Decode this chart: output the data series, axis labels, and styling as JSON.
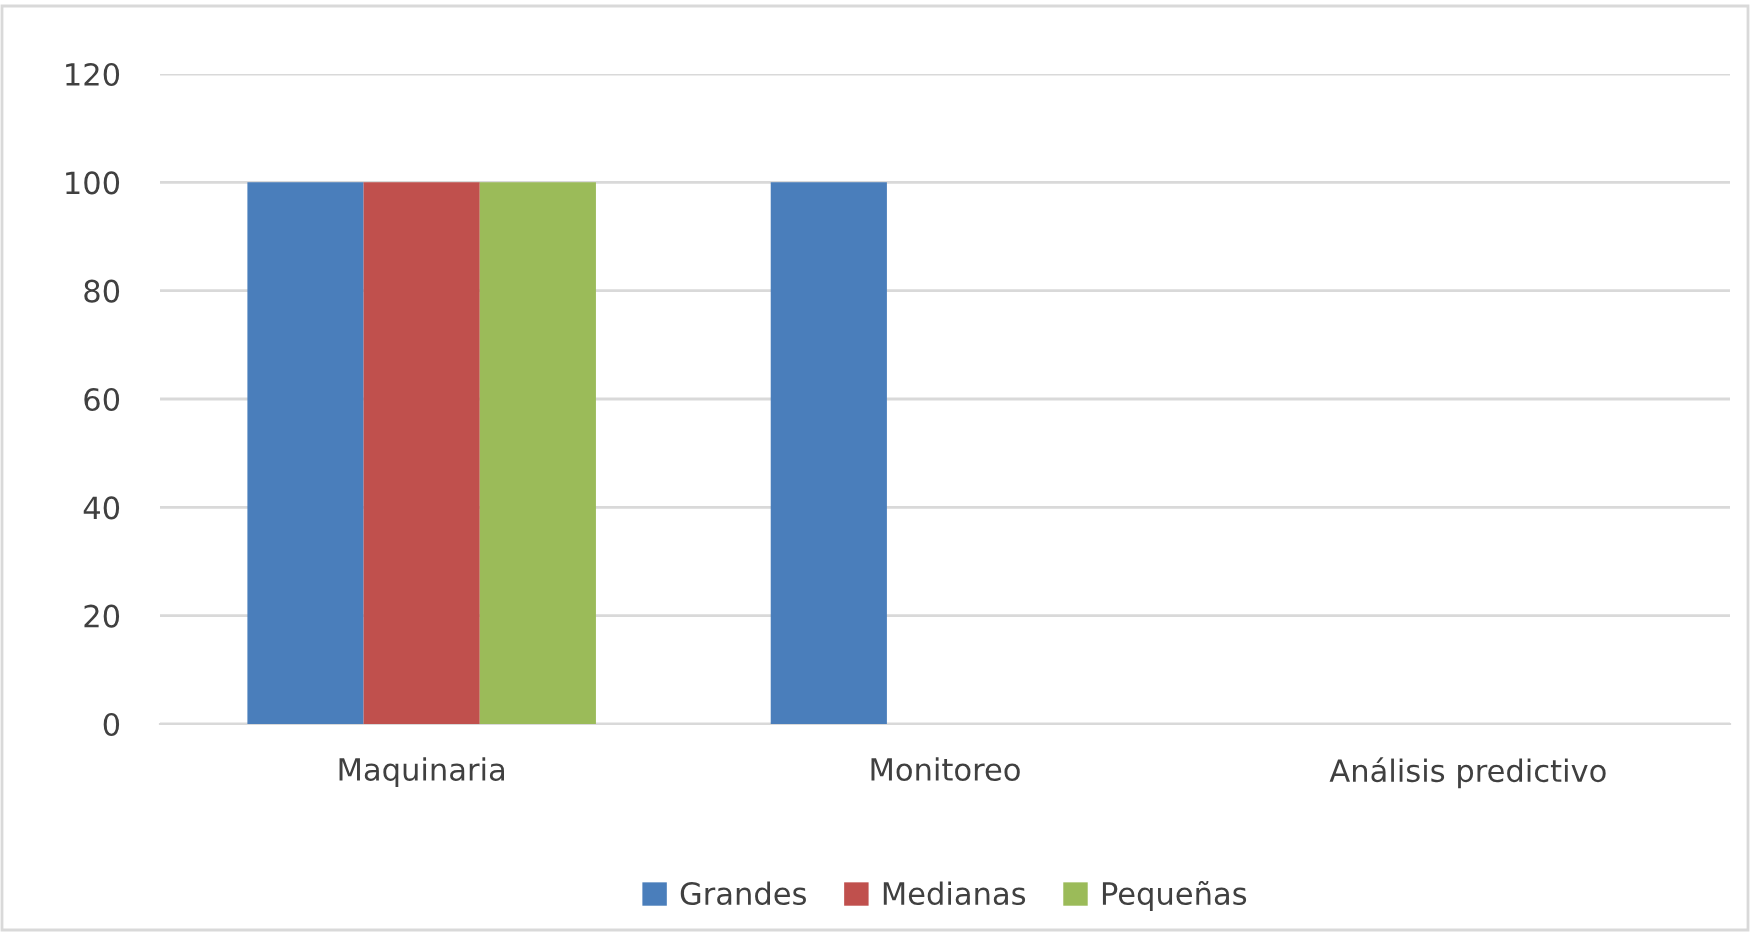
{
  "chart_data": {
    "type": "bar",
    "categories": [
      "Maquinaria",
      "Monitoreo",
      "Análisis predictivo"
    ],
    "series": [
      {
        "name": "Grandes",
        "color": "#4a7ebb",
        "values": [
          100,
          100,
          0
        ]
      },
      {
        "name": "Medianas",
        "color": "#c0504d",
        "values": [
          100,
          0,
          0
        ]
      },
      {
        "name": "Pequeñas",
        "color": "#9bbb59",
        "values": [
          100,
          0,
          0
        ]
      }
    ],
    "ylim": [
      0,
      120
    ],
    "yticks": [
      0,
      20,
      40,
      60,
      80,
      100,
      120
    ],
    "grid": "y",
    "legend": "bottom"
  }
}
